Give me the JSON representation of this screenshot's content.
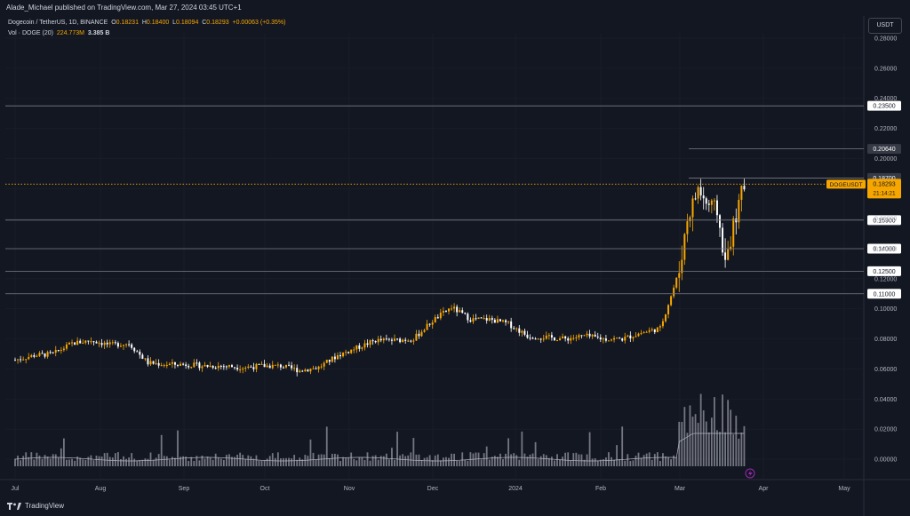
{
  "header": {
    "published": "Alade_Michael published on TradingView.com, Mar 27, 2024 03:45 UTC+1"
  },
  "legend": {
    "pair": "Dogecoin / TetherUS, 1D, BINANCE",
    "open_label": "O",
    "open": "0.18231",
    "high_label": "H",
    "high": "0.18400",
    "low_label": "L",
    "low": "0.18094",
    "close_label": "C",
    "close": "0.18293",
    "change": "+0.00063 (+0.35%)",
    "vol_label": "Vol · DOGE (20)",
    "vol_value": "224.773M",
    "vol_ma": "3.385 B"
  },
  "currency_button": "USDT",
  "brand": "TradingView",
  "colors": {
    "up": "#f7a600",
    "down": "#ffffff",
    "background": "#131722",
    "grid": "#1e222d",
    "level_line": "#787b86",
    "volume": "#9598a1",
    "current": "#f7a600"
  },
  "chart_data": {
    "type": "candlestick",
    "symbol": "DOGEUSDT",
    "timeframe": "1D",
    "y_axis_ticks": [
      "0.28000",
      "0.26000",
      "0.24000",
      "0.22000",
      "0.20000",
      "0.18000",
      "0.16000",
      "0.14000",
      "0.12000",
      "0.10000",
      "0.08000",
      "0.06000",
      "0.04000",
      "0.02000",
      "0.00000"
    ],
    "x_axis_ticks": [
      "Jul",
      "Aug",
      "Sep",
      "Oct",
      "Nov",
      "Dec",
      "2024",
      "Feb",
      "Mar",
      "Apr",
      "May"
    ],
    "price_range": [
      0.0,
      0.29
    ],
    "levels": [
      {
        "label": "0.23500",
        "value": 0.235
      },
      {
        "label": "0.20640",
        "value": 0.2064
      },
      {
        "label": "0.18700",
        "value": 0.187
      },
      {
        "label": "0.15900",
        "value": 0.159
      },
      {
        "label": "0.14000",
        "value": 0.14
      },
      {
        "label": "0.12500",
        "value": 0.125
      },
      {
        "label": "0.11000",
        "value": 0.11
      }
    ],
    "current_price": {
      "symbol": "DOGEUSDT",
      "price": "0.18293",
      "value": 0.18293,
      "countdown": "21:14:21"
    },
    "close_series": [
      [
        "2023-07-01",
        0.066
      ],
      [
        "2023-07-08",
        0.069
      ],
      [
        "2023-07-15",
        0.07
      ],
      [
        "2023-07-22",
        0.077
      ],
      [
        "2023-07-29",
        0.079
      ],
      [
        "2023-08-05",
        0.076
      ],
      [
        "2023-08-12",
        0.077
      ],
      [
        "2023-08-19",
        0.064
      ],
      [
        "2023-08-26",
        0.063
      ],
      [
        "2023-09-02",
        0.063
      ],
      [
        "2023-09-09",
        0.062
      ],
      [
        "2023-09-16",
        0.062
      ],
      [
        "2023-09-23",
        0.061
      ],
      [
        "2023-09-30",
        0.062
      ],
      [
        "2023-10-07",
        0.062
      ],
      [
        "2023-10-14",
        0.059
      ],
      [
        "2023-10-21",
        0.061
      ],
      [
        "2023-10-28",
        0.069
      ],
      [
        "2023-11-04",
        0.074
      ],
      [
        "2023-11-11",
        0.079
      ],
      [
        "2023-11-18",
        0.079
      ],
      [
        "2023-11-25",
        0.08
      ],
      [
        "2023-12-02",
        0.092
      ],
      [
        "2023-12-09",
        0.101
      ],
      [
        "2023-12-16",
        0.093
      ],
      [
        "2023-12-23",
        0.093
      ],
      [
        "2023-12-30",
        0.09
      ],
      [
        "2024-01-06",
        0.082
      ],
      [
        "2024-01-13",
        0.081
      ],
      [
        "2024-01-20",
        0.08
      ],
      [
        "2024-01-27",
        0.082
      ],
      [
        "2024-02-03",
        0.08
      ],
      [
        "2024-02-10",
        0.08
      ],
      [
        "2024-02-17",
        0.084
      ],
      [
        "2024-02-24",
        0.087
      ],
      [
        "2024-03-02",
        0.125
      ],
      [
        "2024-03-05",
        0.16
      ],
      [
        "2024-03-09",
        0.18
      ],
      [
        "2024-03-12",
        0.17
      ],
      [
        "2024-03-16",
        0.165
      ],
      [
        "2024-03-19",
        0.13
      ],
      [
        "2024-03-22",
        0.155
      ],
      [
        "2024-03-26",
        0.1829
      ]
    ]
  }
}
